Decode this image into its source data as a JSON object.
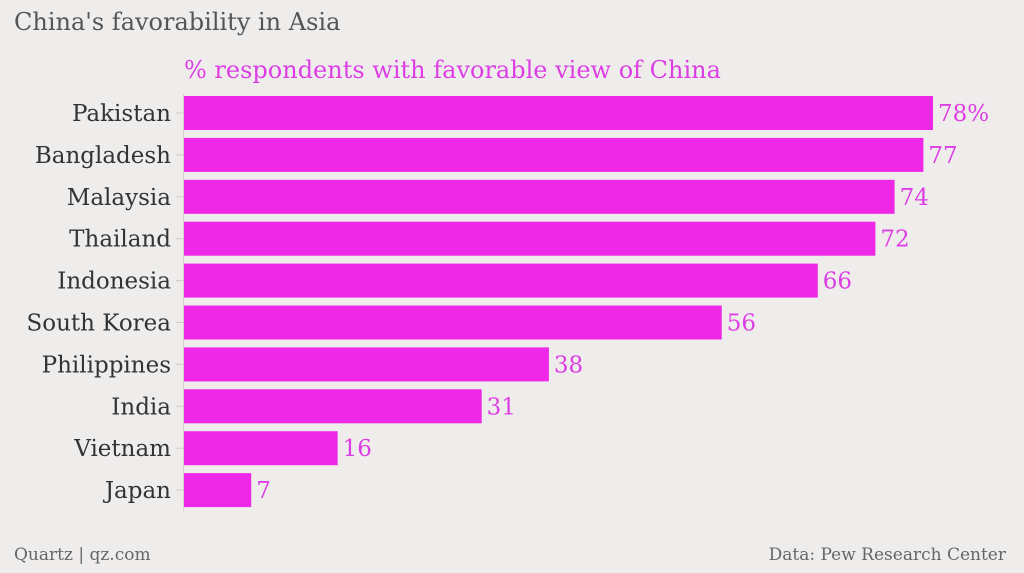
{
  "chart_data": {
    "type": "bar",
    "orientation": "horizontal",
    "title": "China's favorability in Asia",
    "subtitle": "% respondents with favorable view of China",
    "categories": [
      "Pakistan",
      "Bangladesh",
      "Malaysia",
      "Thailand",
      "Indonesia",
      "South Korea",
      "Philippines",
      "India",
      "Vietnam",
      "Japan"
    ],
    "values": [
      78,
      77,
      74,
      72,
      66,
      56,
      38,
      31,
      16,
      7
    ],
    "value_labels": [
      "78%",
      "77",
      "74",
      "72",
      "66",
      "56",
      "38",
      "31",
      "16",
      "7"
    ],
    "xlim": [
      0,
      78
    ],
    "grid": false,
    "bar_color": "#ee28e6",
    "label_color": "#dc3ee3"
  },
  "footer": {
    "source_left": "Quartz | qz.com",
    "source_right": "Data: Pew Research Center"
  },
  "colors": {
    "background": "#efedec",
    "bar": "#ee28e6",
    "text_primary": "#333333",
    "text_secondary": "#666666"
  }
}
